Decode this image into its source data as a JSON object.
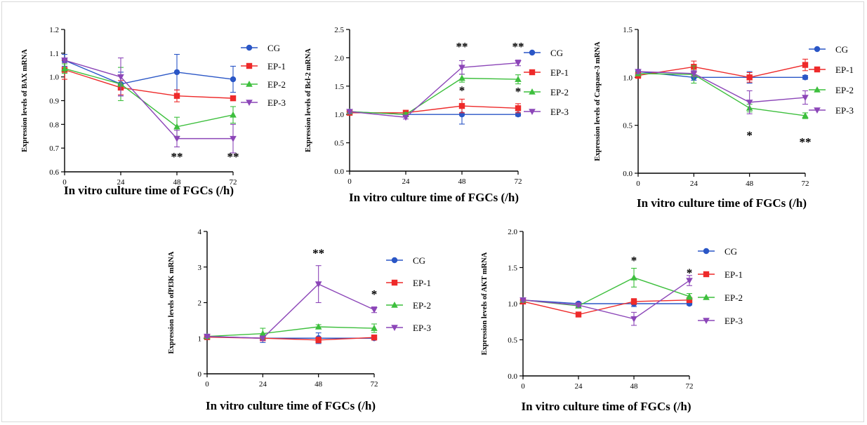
{
  "colors": {
    "CG": "#2a56c6",
    "EP-1": "#ee2a2a",
    "EP-2": "#3dbf3d",
    "EP-3": "#8c46b8"
  },
  "chart_data": [
    {
      "type": "line",
      "xlabel": "In vitro culture time of FGCs (/h)",
      "ylabel": "Expression levels of BAX mRNA",
      "x": [
        0,
        24,
        48,
        72
      ],
      "ylim": [
        0.6,
        1.2
      ],
      "yticks": [
        "0.6",
        "0.7",
        "0.8",
        "0.9",
        "1.0",
        "1.1",
        "1.2"
      ],
      "legend": "right",
      "series": [
        {
          "name": "CG",
          "marker": "circle",
          "values": [
            1.07,
            0.97,
            1.02,
            0.99
          ],
          "errors": [
            0.025,
            0.05,
            0.075,
            0.055
          ]
        },
        {
          "name": "EP-1",
          "marker": "square",
          "values": [
            1.03,
            0.955,
            0.92,
            0.91
          ],
          "errors": [
            0.04,
            0.03,
            0.025,
            0.01
          ]
        },
        {
          "name": "EP-2",
          "marker": "triangle-up",
          "values": [
            1.035,
            0.97,
            0.79,
            0.84
          ],
          "errors": [
            0.02,
            0.07,
            0.04,
            0.035
          ]
        },
        {
          "name": "EP-3",
          "marker": "triangle-down",
          "values": [
            1.07,
            1.0,
            0.74,
            0.74
          ],
          "errors": [
            0.01,
            0.08,
            0.035,
            0.06
          ]
        }
      ],
      "annotations": [
        {
          "x": 48,
          "text": "**",
          "y": 0.665
        },
        {
          "x": 72,
          "text": "**",
          "y": 0.665
        }
      ]
    },
    {
      "type": "line",
      "xlabel": "In vitro culture time of FGCs (/h)",
      "ylabel": "Expression levels of Bcl-2 mRNA",
      "x": [
        0,
        24,
        48,
        72
      ],
      "ylim": [
        0.0,
        2.5
      ],
      "yticks": [
        "0.0",
        "0.5",
        "1.0",
        "1.5",
        "2.0",
        "2.5"
      ],
      "legend": "right",
      "series": [
        {
          "name": "CG",
          "marker": "circle",
          "values": [
            1.05,
            1.0,
            1.0,
            1.0
          ],
          "errors": [
            0.03,
            0.03,
            0.17,
            0.03
          ]
        },
        {
          "name": "EP-1",
          "marker": "square",
          "values": [
            1.03,
            1.03,
            1.15,
            1.11
          ],
          "errors": [
            0.03,
            0.03,
            0.12,
            0.08
          ]
        },
        {
          "name": "EP-2",
          "marker": "triangle-up",
          "values": [
            1.05,
            1.0,
            1.64,
            1.62
          ],
          "errors": [
            0.03,
            0.03,
            0.07,
            0.08
          ]
        },
        {
          "name": "EP-3",
          "marker": "triangle-down",
          "values": [
            1.05,
            0.95,
            1.83,
            1.91
          ],
          "errors": [
            0.03,
            0.03,
            0.12,
            0.05
          ]
        }
      ],
      "annotations": [
        {
          "x": 48,
          "text": "**",
          "y": 2.2
        },
        {
          "x": 72,
          "text": "**",
          "y": 2.2
        },
        {
          "x": 48,
          "text": "*",
          "y": 1.43
        },
        {
          "x": 72,
          "text": "*",
          "y": 1.41
        }
      ]
    },
    {
      "type": "line",
      "xlabel": "In vitro culture time of FGCs (/h)",
      "ylabel": "Expression levels of Caspase-3 mRNA",
      "x": [
        0,
        24,
        48,
        72
      ],
      "ylim": [
        0.0,
        1.5
      ],
      "yticks": [
        "0.0",
        "0.5",
        "1.0",
        "1.5"
      ],
      "legend": "right",
      "series": [
        {
          "name": "CG",
          "marker": "circle",
          "values": [
            1.06,
            1.0,
            1.0,
            1.0
          ],
          "errors": [
            0.02,
            0.03,
            0.06,
            0.02
          ]
        },
        {
          "name": "EP-1",
          "marker": "square",
          "values": [
            1.02,
            1.11,
            1.0,
            1.13
          ],
          "errors": [
            0.03,
            0.06,
            0.05,
            0.06
          ]
        },
        {
          "name": "EP-2",
          "marker": "triangle-up",
          "values": [
            1.04,
            1.03,
            0.68,
            0.6
          ],
          "errors": [
            0.02,
            0.09,
            0.04,
            0.03
          ]
        },
        {
          "name": "EP-3",
          "marker": "triangle-down",
          "values": [
            1.06,
            1.04,
            0.74,
            0.79
          ],
          "errors": [
            0.02,
            0.03,
            0.12,
            0.07
          ]
        }
      ],
      "annotations": [
        {
          "x": 48,
          "text": "*",
          "y": 0.4
        },
        {
          "x": 72,
          "text": "**",
          "y": 0.33
        }
      ]
    },
    {
      "type": "line",
      "xlabel": "In vitro culture time of FGCs (/h)",
      "ylabel": "Expression levels ofPI3K mRNA",
      "x": [
        0,
        24,
        48,
        72
      ],
      "ylim": [
        0,
        4
      ],
      "yticks": [
        "0",
        "1",
        "2",
        "3",
        "4"
      ],
      "legend": "right",
      "series": [
        {
          "name": "CG",
          "marker": "circle",
          "values": [
            1.05,
            1.0,
            1.0,
            1.0
          ],
          "errors": [
            0.04,
            0.12,
            0.15,
            0.04
          ]
        },
        {
          "name": "EP-1",
          "marker": "square",
          "values": [
            1.03,
            1.0,
            0.95,
            1.02
          ],
          "errors": [
            0.03,
            0.05,
            0.08,
            0.04
          ]
        },
        {
          "name": "EP-2",
          "marker": "triangle-up",
          "values": [
            1.05,
            1.13,
            1.32,
            1.28
          ],
          "errors": [
            0.03,
            0.15,
            0.06,
            0.12
          ]
        },
        {
          "name": "EP-3",
          "marker": "triangle-down",
          "values": [
            1.05,
            1.0,
            2.52,
            1.8
          ],
          "errors": [
            0.03,
            0.06,
            0.52,
            0.08
          ]
        }
      ],
      "annotations": [
        {
          "x": 48,
          "text": "**",
          "y": 3.4
        },
        {
          "x": 72,
          "text": "*",
          "y": 2.25
        }
      ]
    },
    {
      "type": "line",
      "xlabel": "In vitro culture time of FGCs (/h)",
      "ylabel": "Expression levels of AKT mRNA",
      "x": [
        0,
        24,
        48,
        72
      ],
      "ylim": [
        0.0,
        2.0
      ],
      "yticks": [
        "0.0",
        "0.5",
        "1.0",
        "1.5",
        "2.0"
      ],
      "legend": "right",
      "series": [
        {
          "name": "CG",
          "marker": "circle",
          "values": [
            1.05,
            1.0,
            1.0,
            1.0
          ],
          "errors": [
            0.02,
            0.02,
            0.04,
            0.02
          ]
        },
        {
          "name": "EP-1",
          "marker": "square",
          "values": [
            1.03,
            0.85,
            1.03,
            1.05
          ],
          "errors": [
            0.02,
            0.02,
            0.04,
            0.03
          ]
        },
        {
          "name": "EP-2",
          "marker": "triangle-up",
          "values": [
            1.05,
            0.97,
            1.36,
            1.1
          ],
          "errors": [
            0.02,
            0.02,
            0.13,
            0.04
          ]
        },
        {
          "name": "EP-3",
          "marker": "triangle-down",
          "values": [
            1.05,
            0.98,
            0.79,
            1.32
          ],
          "errors": [
            0.02,
            0.02,
            0.09,
            0.07
          ]
        }
      ],
      "annotations": [
        {
          "x": 48,
          "text": "*",
          "y": 1.6
        },
        {
          "x": 72,
          "text": "*",
          "y": 1.43
        }
      ]
    }
  ]
}
